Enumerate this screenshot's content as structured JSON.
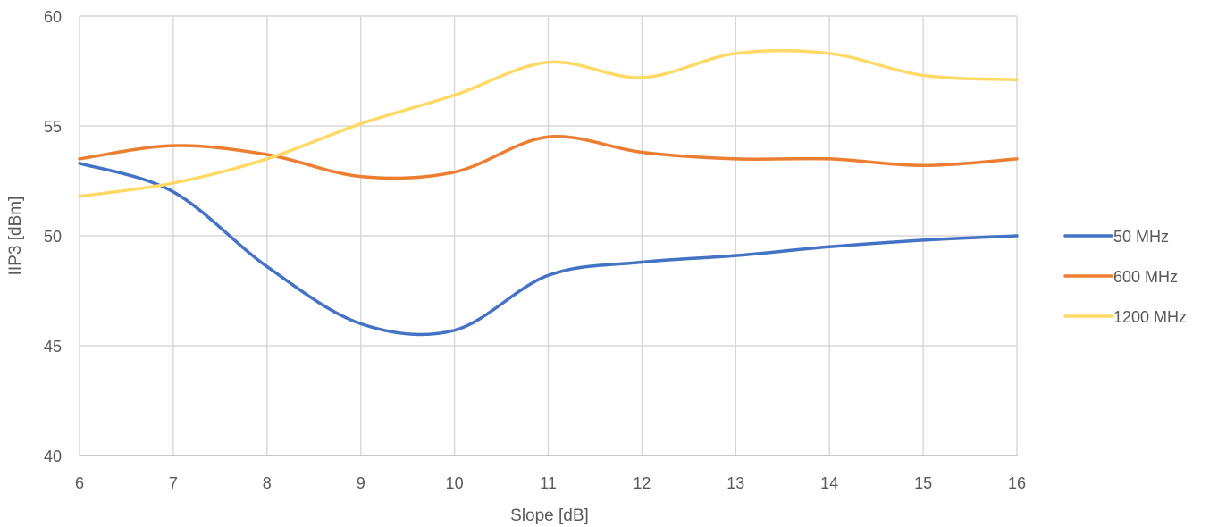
{
  "chart_data": {
    "type": "line",
    "title": "",
    "xlabel": "Slope [dB]",
    "ylabel": "IIP3 [dBm]",
    "x": [
      6,
      7,
      8,
      9,
      10,
      11,
      12,
      13,
      14,
      15,
      16
    ],
    "xlim": [
      6,
      16
    ],
    "ylim": [
      40,
      60
    ],
    "yticks": [
      40,
      45,
      50,
      55,
      60
    ],
    "grid": true,
    "smooth": true,
    "legend_position": "right",
    "series": [
      {
        "name": "50 MHz",
        "color": "#4472C4",
        "values": [
          53.3,
          52.0,
          48.6,
          46.0,
          45.7,
          48.2,
          48.8,
          49.1,
          49.5,
          49.8,
          50.0
        ]
      },
      {
        "name": "600 MHz",
        "color": "#ED7D31",
        "values": [
          53.5,
          54.1,
          53.7,
          52.7,
          52.9,
          54.5,
          53.8,
          53.5,
          53.5,
          53.2,
          53.5
        ]
      },
      {
        "name": "1200 MHz",
        "color": "#FFD966",
        "values": [
          51.8,
          52.4,
          53.5,
          55.1,
          56.4,
          57.9,
          57.2,
          58.3,
          58.3,
          57.3,
          57.1
        ]
      }
    ]
  }
}
